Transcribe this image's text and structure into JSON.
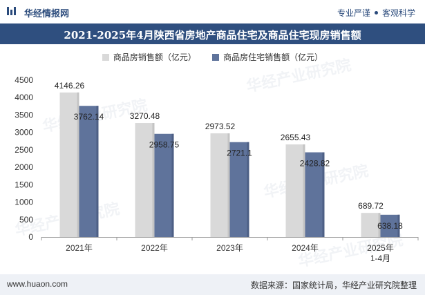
{
  "header": {
    "brand": "华经情报网",
    "slogan_left": "专业严谨",
    "slogan_right": "客观科学"
  },
  "title": "2021-2025年4月陕西省房地产商品住宅及商品住宅现房销售额",
  "footer": {
    "site": "www.huaon.com",
    "source": "数据来源：国家统计局，华经产业研究院整理"
  },
  "watermark": "华经产业研究院",
  "colors": {
    "accent": "#2f4f7f",
    "series_a": "#d9d9d9",
    "series_b": "#5f739b"
  },
  "chart_data": {
    "type": "bar",
    "categories": [
      "2021年",
      "2022年",
      "2023年",
      "2024年",
      "2025年\n1-4月"
    ],
    "series": [
      {
        "name": "商品房销售额（亿元）",
        "values": [
          4146.26,
          3270.48,
          2973.52,
          2655.43,
          689.72
        ],
        "labels": [
          "4146.26",
          "3270.48",
          "2973.52",
          "2655.43",
          "689.72"
        ]
      },
      {
        "name": "商品房住宅销售额（亿元）",
        "values": [
          3762.14,
          2958.75,
          2721.1,
          2428.82,
          638.18
        ],
        "labels": [
          "3762.14",
          "2958.75",
          "2721.1",
          "2428.82",
          "638.18"
        ]
      }
    ],
    "ylim": [
      0,
      4500
    ],
    "yticks": [
      0,
      500,
      1000,
      1500,
      2000,
      2500,
      3000,
      3500,
      4000,
      4500
    ],
    "grid": false,
    "legend": "top-center"
  }
}
